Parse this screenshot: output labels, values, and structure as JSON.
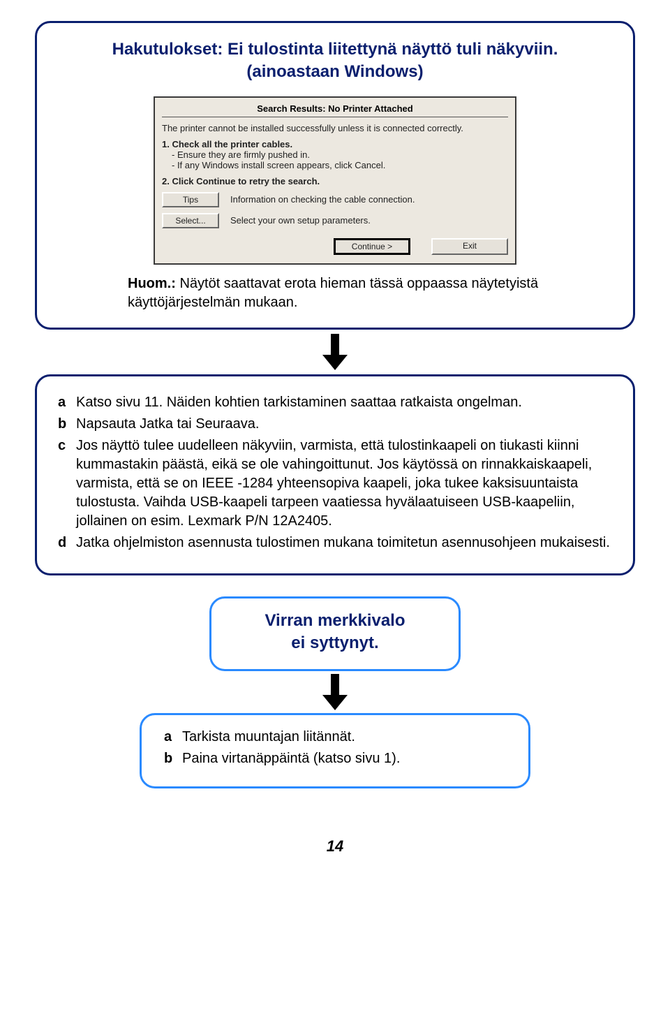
{
  "box1": {
    "heading_line1": "Hakutulokset: Ei tulostinta liitettynä näyttö tuli näkyviin.",
    "heading_line2": "(ainoastaan Windows)",
    "dialog": {
      "title": "Search Results: No Printer Attached",
      "intro": "The printer cannot be installed successfully unless it is connected correctly.",
      "step1_head": "1. Check all the printer cables.",
      "step1_sub1": "- Ensure they are firmly pushed in.",
      "step1_sub2": "- If any Windows install screen appears, click Cancel.",
      "step2_head": "2. Click Continue to retry the search.",
      "tips_btn": "Tips",
      "tips_text": "Information on checking the cable connection.",
      "select_btn": "Select...",
      "select_text": "Select your own setup parameters.",
      "continue_btn": "Continue >",
      "exit_btn": "Exit"
    },
    "note_bold": "Huom.:",
    "note_text": " Näytöt saattavat erota hieman tässä oppaassa näytetyistä käyttöjärjestelmän mukaan."
  },
  "box2": {
    "items": [
      {
        "lbl": "a",
        "text": "Katso sivu 11. Näiden kohtien tarkistaminen saattaa ratkaista ongelman."
      },
      {
        "lbl": "b",
        "text": "Napsauta Jatka tai Seuraava."
      },
      {
        "lbl": "c",
        "text": "Jos näyttö tulee uudelleen näkyviin, varmista, että tulostinkaapeli on tiukasti kiinni kummastakin päästä, eikä se ole vahingoittunut. Jos käytössä on rinnakkaiskaapeli, varmista, että se on IEEE -1284 yhteensopiva kaapeli, joka tukee kaksisuuntaista tulostusta. Vaihda USB-kaapeli tarpeen vaatiessa hyvälaatuiseen USB-kaapeliin, jollainen on esim. Lexmark P/N 12A2405."
      },
      {
        "lbl": "d",
        "text": "Jatka ohjelmiston asennusta tulostimen mukana toimitetun asennusohjeen mukaisesti."
      }
    ]
  },
  "box3": {
    "heading_line1": "Virran merkkivalo",
    "heading_line2": "ei syttynyt."
  },
  "box4": {
    "items": [
      {
        "lbl": "a",
        "text": "Tarkista muuntajan liitännät."
      },
      {
        "lbl": "b",
        "text": "Paina virtanäppäintä (katso sivu 1)."
      }
    ]
  },
  "page_number": "14",
  "colors": {
    "dark_blue": "#0a1f6e",
    "light_blue": "#2a8aff",
    "dialog_bg": "#ece8e0"
  }
}
